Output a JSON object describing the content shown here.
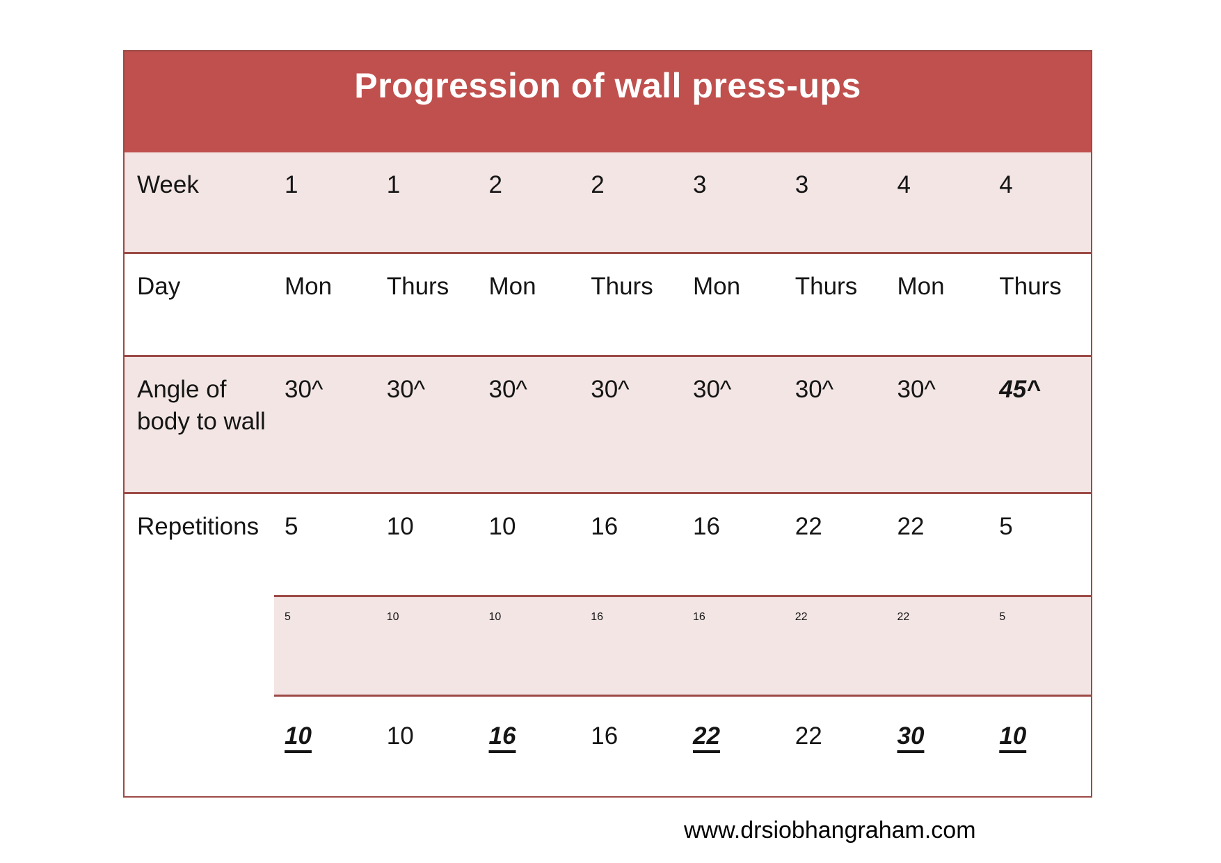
{
  "title": "Progression of wall press-ups",
  "footer": {
    "url": "www.drsiobhangraham.com"
  },
  "colors": {
    "header_red": "#c0504d",
    "row_pink": "#f2e5e4",
    "border_maroon": "#9c4a46"
  },
  "table": {
    "rows": [
      {
        "label": "Week",
        "values": [
          "1",
          "1",
          "2",
          "2",
          "3",
          "3",
          "4",
          "4"
        ]
      },
      {
        "label": "Day",
        "values": [
          "Mon",
          "Thurs",
          "Mon",
          "Thurs",
          "Mon",
          "Thurs",
          "Mon",
          "Thurs"
        ]
      },
      {
        "label": "Angle of body to wall",
        "values": [
          "30^",
          "30^",
          "30^",
          "30^",
          "30^",
          "30^",
          "30^",
          "45^"
        ]
      },
      {
        "label": "Repetitions",
        "values": [
          "5",
          "10",
          "10",
          "16",
          "16",
          "22",
          "22",
          "5"
        ]
      },
      {
        "label": "",
        "values": [
          "5",
          "10",
          "10",
          "16",
          "16",
          "22",
          "22",
          "5"
        ]
      },
      {
        "label": "",
        "values": [
          "10",
          "10",
          "16",
          "16",
          "22",
          "22",
          "30",
          "10"
        ]
      }
    ]
  }
}
